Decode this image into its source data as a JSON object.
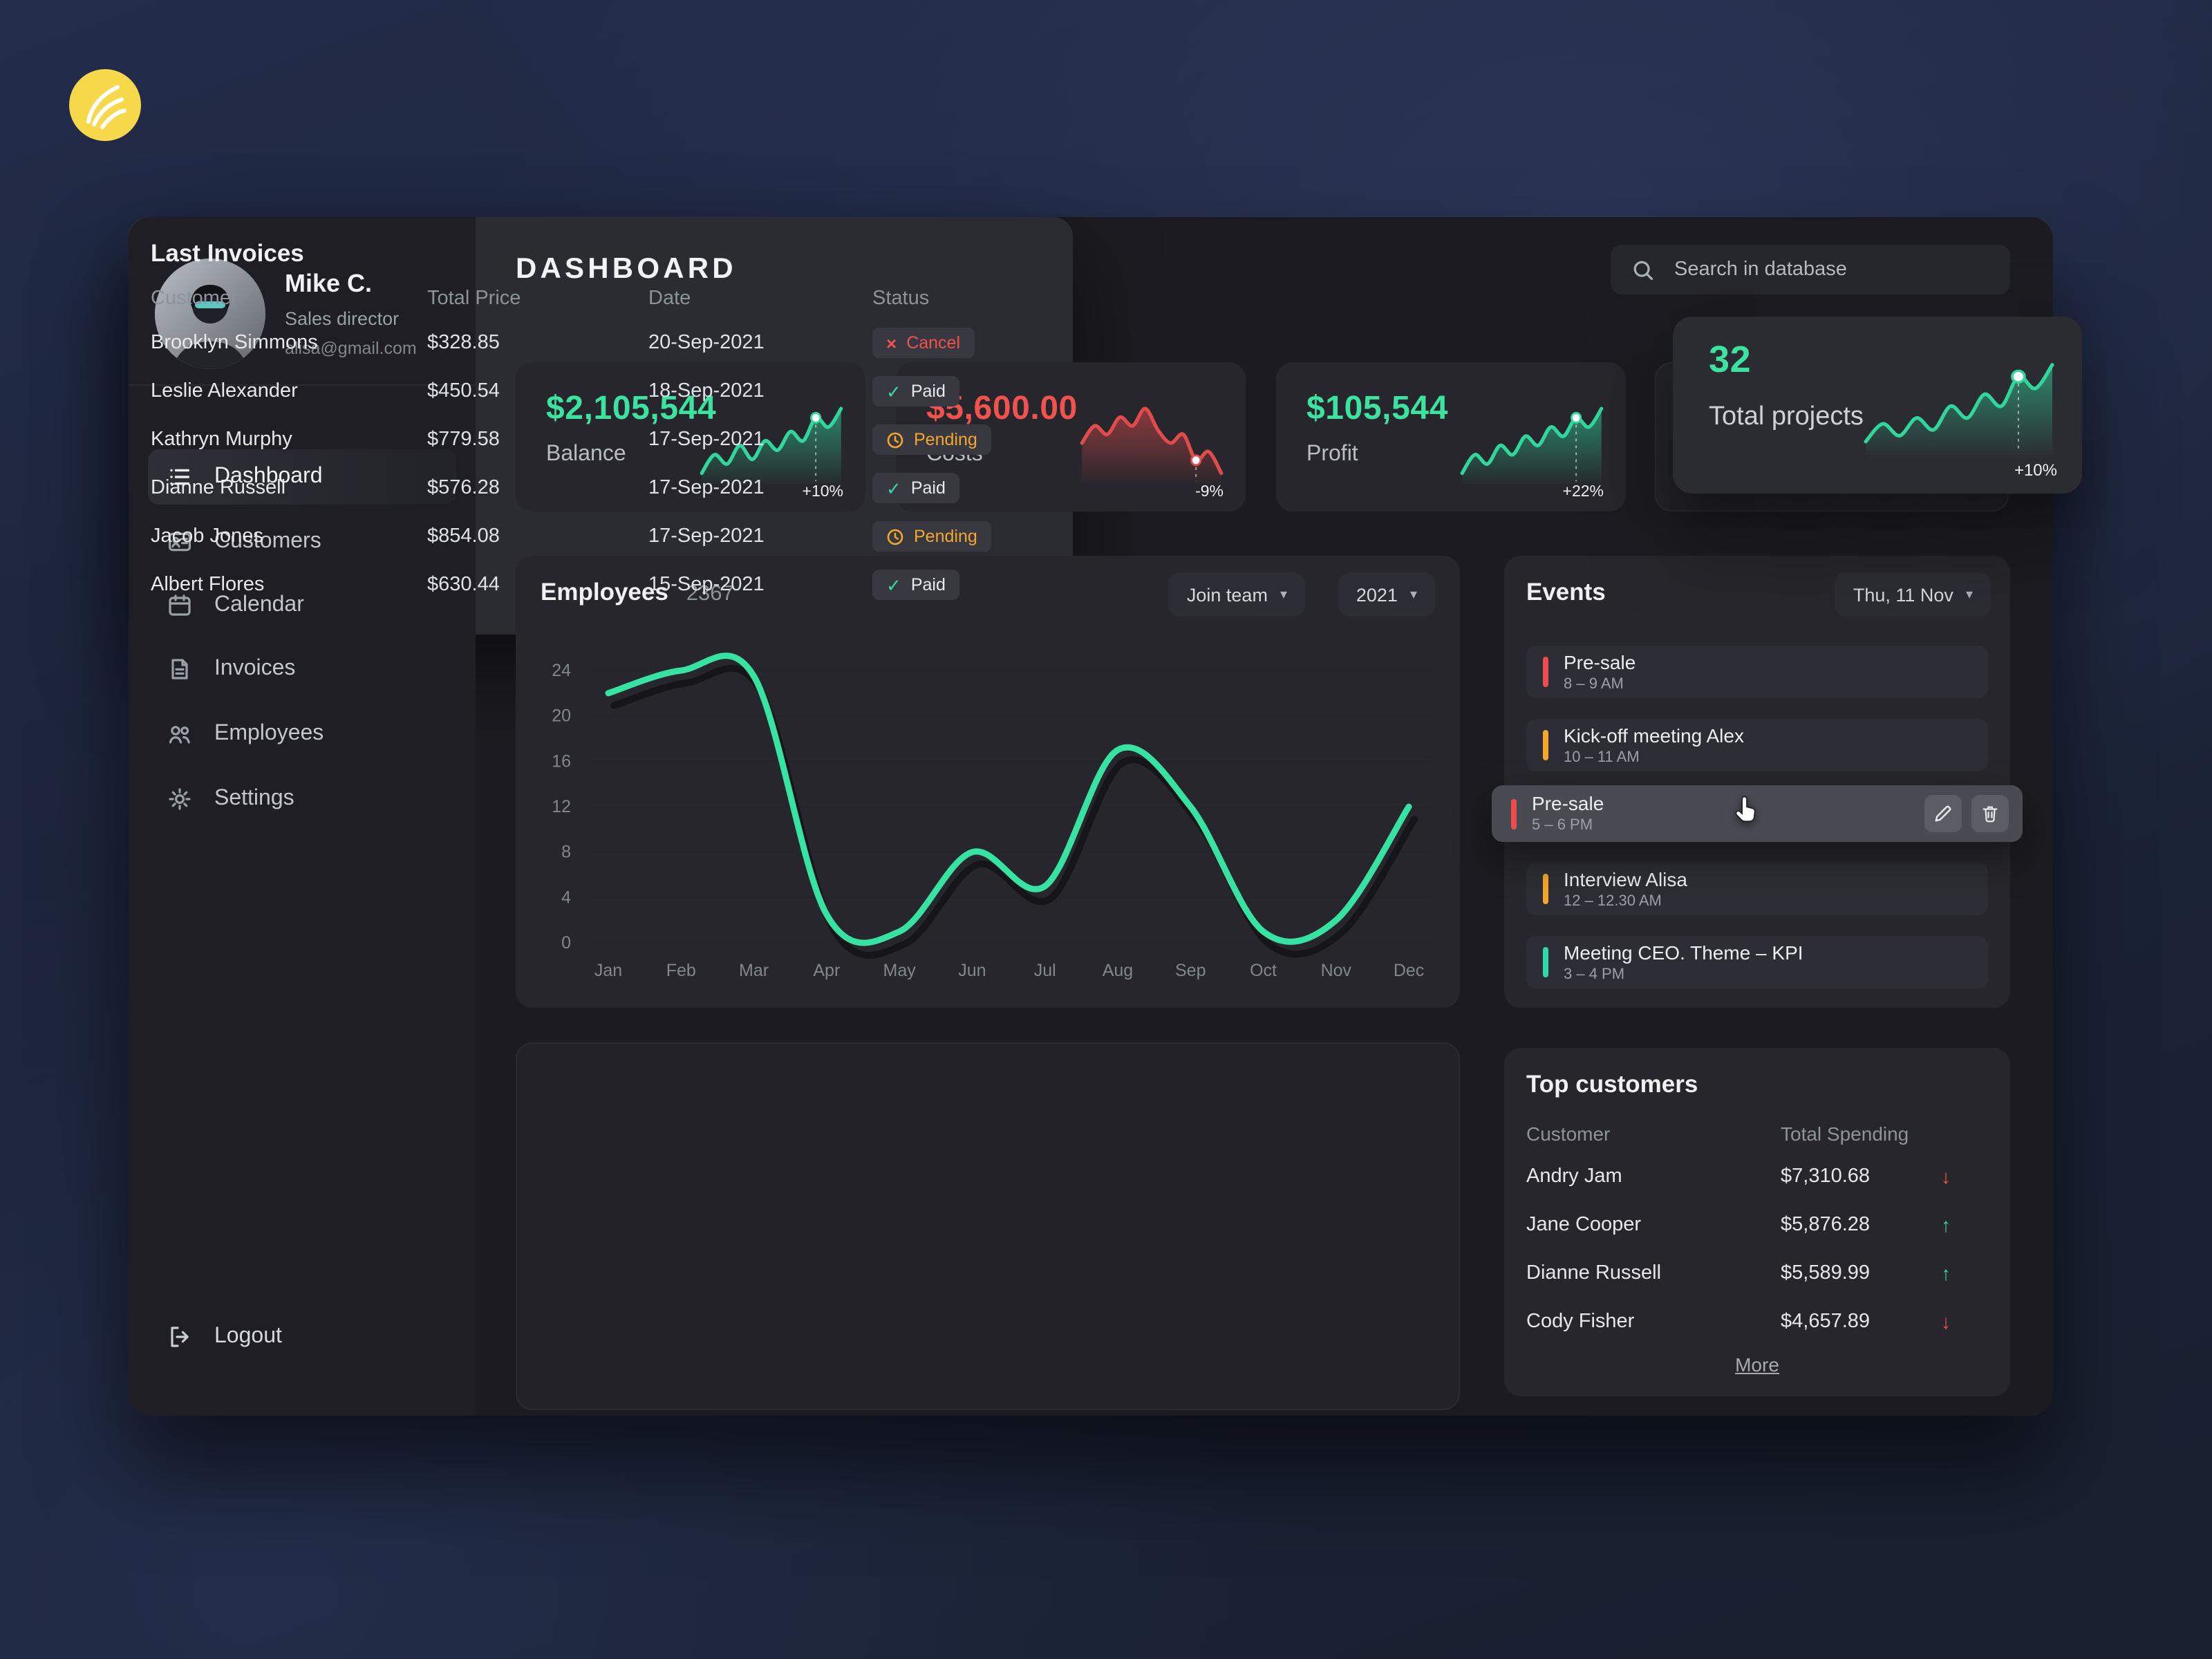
{
  "app": {
    "title": "DASHBOARD"
  },
  "search": {
    "placeholder": "Search in database"
  },
  "profile": {
    "name": "Mike C.",
    "role": "Sales director",
    "email": "alisa@gmail.com"
  },
  "sidebar": {
    "items": [
      {
        "label": "Dashboard",
        "active": true
      },
      {
        "label": "Customers"
      },
      {
        "label": "Calendar"
      },
      {
        "label": "Invoices"
      },
      {
        "label": "Employees"
      },
      {
        "label": "Settings"
      }
    ],
    "logout_label": "Logout"
  },
  "stats": {
    "cards": [
      {
        "value": "$2,105,544",
        "label": "Balance",
        "delta": "+10%",
        "trend": "up"
      },
      {
        "value": "$5,600.00",
        "label": "Costs",
        "delta": "-9%",
        "trend": "down"
      },
      {
        "value": "$105,544",
        "label": "Profit",
        "delta": "+22%",
        "trend": "up"
      },
      {
        "value": "32",
        "label": "Total projects",
        "delta": "+10%",
        "trend": "up"
      }
    ]
  },
  "employees_panel": {
    "title": "Employees",
    "count": "2367",
    "join_team_label": "Join team",
    "year_label": "2021"
  },
  "events": {
    "title": "Events",
    "date_label": "Thu, 11 Nov",
    "items": [
      {
        "title": "Pre-sale",
        "time": "8 – 9 AM",
        "accent": "red"
      },
      {
        "title": "Kick-off meeting Alex",
        "time": "10 – 11 AM",
        "accent": "orange"
      },
      {
        "title": "Pre-sale",
        "time": "5 – 6 PM",
        "accent": "red",
        "highlighted": true
      },
      {
        "title": "Interview Alisa",
        "time": "12 – 12.30 AM",
        "accent": "orange"
      },
      {
        "title": "Meeting CEO. Theme – KPI",
        "time": "3 – 4 PM",
        "accent": "teal"
      }
    ]
  },
  "invoices": {
    "title": "Last Invoices",
    "headers": {
      "customer": "Customer",
      "price": "Total Price",
      "date": "Date",
      "status": "Status"
    },
    "rows": [
      {
        "customer": "Brooklyn Simmons",
        "price": "$328.85",
        "date": "20-Sep-2021",
        "status": "Cancel",
        "status_type": "cancel"
      },
      {
        "customer": "Leslie Alexander",
        "price": "$450.54",
        "date": "18-Sep-2021",
        "status": "Paid",
        "status_type": "paid"
      },
      {
        "customer": "Kathryn Murphy",
        "price": "$779.58",
        "date": "17-Sep-2021",
        "status": "Pending",
        "status_type": "pending"
      },
      {
        "customer": "Dianne Russell",
        "price": "$576.28",
        "date": "17-Sep-2021",
        "status": "Paid",
        "status_type": "paid"
      },
      {
        "customer": "Jacob Jones",
        "price": "$854.08",
        "date": "17-Sep-2021",
        "status": "Pending",
        "status_type": "pending"
      },
      {
        "customer": "Albert Flores",
        "price": "$630.44",
        "date": "15-Sep-2021",
        "status": "Paid",
        "status_type": "paid"
      }
    ]
  },
  "top_customers": {
    "title": "Top customers",
    "headers": {
      "customer": "Customer",
      "spending": "Total Spending"
    },
    "rows": [
      {
        "customer": "Andry Jam",
        "amount": "$7,310.68",
        "trend": "down"
      },
      {
        "customer": "Jane Cooper",
        "amount": "$5,876.28",
        "trend": "up"
      },
      {
        "customer": "Dianne Russell",
        "amount": "$5,589.99",
        "trend": "up"
      },
      {
        "customer": "Cody Fisher",
        "amount": "$4,657.89",
        "trend": "down"
      }
    ],
    "more_label": "More"
  },
  "chart_data": [
    {
      "name": "employees-line",
      "type": "line",
      "title": "Employees",
      "current_value": "2367",
      "x": [
        "Jan",
        "Feb",
        "Mar",
        "Apr",
        "May",
        "Jun",
        "Jul",
        "Aug",
        "Sep",
        "Oct",
        "Nov",
        "Dec"
      ],
      "series": [
        {
          "name": "Employees 2021",
          "values": [
            22,
            24,
            23.5,
            2.5,
            1,
            8,
            5,
            17,
            12,
            1,
            2,
            12
          ]
        }
      ],
      "ylim": [
        0,
        24
      ],
      "yticks": [
        0,
        4,
        8,
        12,
        16,
        20,
        24
      ],
      "line_color": "#36e3a2",
      "grid": true,
      "legend": "none"
    },
    {
      "name": "balance-spark",
      "type": "area",
      "label": "+10%",
      "color": "#31d69c",
      "dot_index": 9,
      "values": [
        4,
        6,
        5,
        7,
        5.5,
        7.5,
        6.5,
        8.5,
        7.5,
        10,
        9,
        11
      ]
    },
    {
      "name": "costs-spark",
      "type": "area",
      "label": "-9%",
      "color": "#e04b4b",
      "dot_index": 9,
      "values": [
        8,
        10,
        9,
        11,
        10,
        12,
        9.5,
        8,
        9,
        6,
        7,
        4.5
      ]
    },
    {
      "name": "profit-spark",
      "type": "area",
      "label": "+22%",
      "color": "#31d69c",
      "dot_index": 9,
      "values": [
        5,
        7,
        6,
        8,
        7,
        9,
        8,
        10,
        9,
        11,
        10,
        12
      ]
    },
    {
      "name": "projects-spark",
      "type": "area",
      "label": "+10%",
      "color": "#31d69c",
      "dot_index": 9,
      "values": [
        5,
        6.5,
        5.5,
        7,
        6,
        8,
        7,
        9,
        8,
        10.5,
        9.5,
        11.5
      ]
    }
  ],
  "colors": {
    "green": "#3ce2a0",
    "red": "#f0524e",
    "orange": "#f5a62b",
    "teal": "#2fd9ab",
    "panel_bg": "#26262c",
    "logo_yellow": "#f8d84b"
  }
}
